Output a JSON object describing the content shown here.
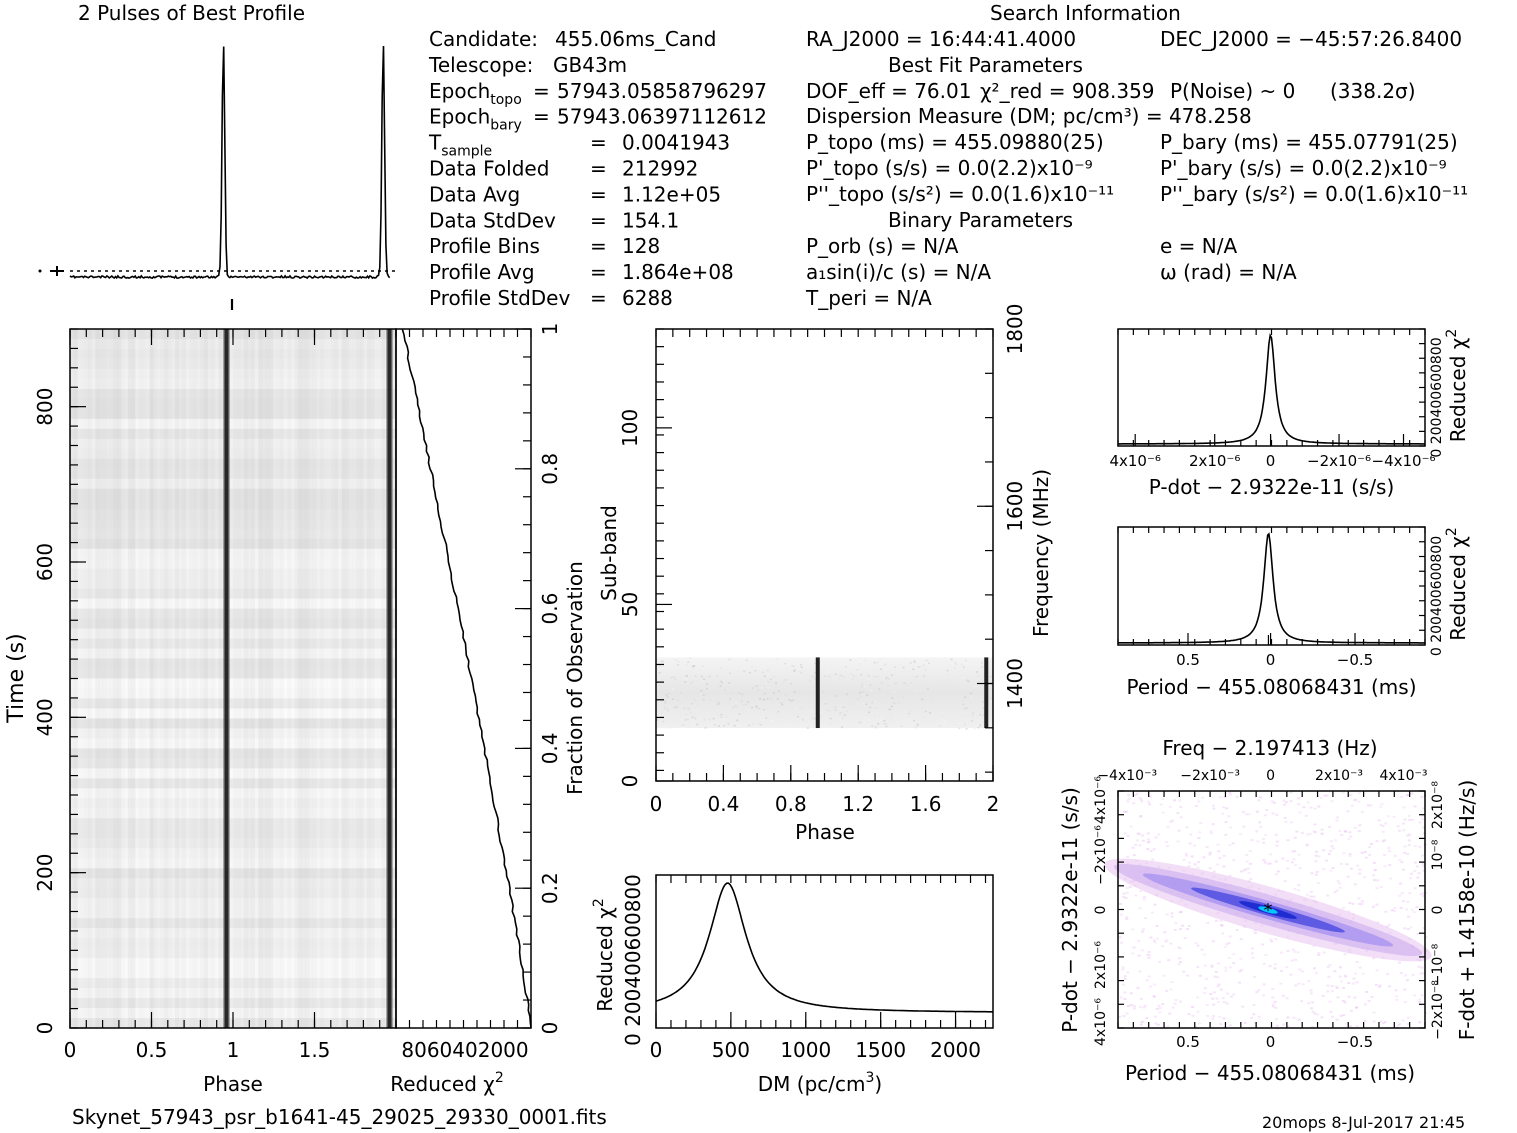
{
  "colors": {
    "background": "#ffffff",
    "ink": "#000000",
    "map_low": "#ffffff",
    "map_mid": "#e8c8f0",
    "map_high": "#2a2ad0",
    "map_peak": "#00c8ff"
  },
  "header": {
    "profile_title": "2 Pulses of Best Profile",
    "search_title": "Search Information",
    "best_fit_title": "Best Fit Parameters",
    "binary_title": "Binary Parameters"
  },
  "info_col1": [
    {
      "name": "Candidate:",
      "sub": "",
      "value": "455.06ms_Cand",
      "eq": ""
    },
    {
      "name": "Telescope:",
      "sub": "",
      "value": "GB43m",
      "eq": ""
    },
    {
      "name": "Epoch",
      "sub": "topo",
      "value": "57943.05858796297",
      "eq": "="
    },
    {
      "name": "Epoch",
      "sub": "bary",
      "value": "57943.06397112612",
      "eq": "="
    },
    {
      "name": "T",
      "sub": "sample",
      "value": "0.0041943",
      "eq": "="
    },
    {
      "name": "Data Folded",
      "sub": "",
      "value": "212992",
      "eq": "="
    },
    {
      "name": "Data Avg",
      "sub": "",
      "value": "1.12e+05",
      "eq": "="
    },
    {
      "name": "Data StdDev",
      "sub": "",
      "value": "154.1",
      "eq": "="
    },
    {
      "name": "Profile Bins",
      "sub": "",
      "value": "128",
      "eq": "="
    },
    {
      "name": "Profile Avg",
      "sub": "",
      "value": "1.864e+08",
      "eq": "="
    },
    {
      "name": "Profile StdDev",
      "sub": "",
      "value": "6288",
      "eq": "="
    }
  ],
  "info_col2": {
    "ra": "RA_J2000 = 16:44:41.4000",
    "dec": "DEC_J2000 = −45:57:26.8400",
    "dof": "DOF_eff = 76.01",
    "chi2": "χ²_red = 908.359",
    "pnoise": "P(Noise) ~ 0",
    "sigma": "(338.2σ)",
    "dm": "Dispersion Measure (DM; pc/cm³) = 478.258",
    "ptopo": "P_topo (ms) = 455.09880(25)",
    "pbary": "P_bary (ms) = 455.07791(25)",
    "pdtopo": "P'_topo (s/s) = 0.0(2.2)x10⁻⁹",
    "pdbary": "P'_bary (s/s) = 0.0(2.2)x10⁻⁹",
    "pddtopo": "P''_topo (s/s²) = 0.0(1.6)x10⁻¹¹",
    "pddbary": "P''_bary (s/s²) = 0.0(1.6)x10⁻¹¹",
    "porb": "P_orb (s) = N/A",
    "e": "e = N/A",
    "a1": "a₁sin(i)/c (s) = N/A",
    "omega": "ω (rad) = N/A",
    "tperi": "T_peri = N/A"
  },
  "footer": {
    "filename": "Skynet_57943_psr_b1641-45_29025_29330_0001.fits",
    "stamp": "20mops   8-Jul-2017 21:45"
  },
  "chart_data": [
    {
      "type": "line",
      "title": "2 Pulses of Best Profile",
      "xlabel": "",
      "ylabel": "",
      "x_range": [
        0,
        2
      ],
      "pulse_phases": [
        0.96,
        1.96
      ],
      "baseline_dotted": true
    },
    {
      "type": "heatmap",
      "xlabel": "Phase",
      "ylabel": "Time (s)",
      "x_ticks": [
        "0",
        "0.5",
        "1",
        "1.5"
      ],
      "y_ticks": [
        "0",
        "200",
        "400",
        "600",
        "800"
      ],
      "xlim": [
        0,
        2
      ],
      "ylim": [
        0,
        900
      ],
      "pulse_phases": [
        0.96,
        1.96
      ]
    },
    {
      "type": "line",
      "xlabel": "Reduced χ²",
      "ylabel": "Fraction of Observation",
      "x_tick_labels": "8060402000",
      "y_ticks": [
        "0",
        "0.2",
        "0.4",
        "0.6",
        "0.8",
        "1"
      ],
      "ylim": [
        0,
        1
      ],
      "note": "cumulative reduced chi2 vs fraction"
    },
    {
      "type": "heatmap",
      "xlabel": "Phase",
      "ylabel": "Sub-band",
      "y2label": "Frequency (MHz)",
      "x_ticks": [
        "0",
        "0.4",
        "0.8",
        "1.2",
        "1.6",
        "2"
      ],
      "y_ticks": [
        "0",
        "50",
        "100"
      ],
      "y2_ticks": [
        "1400",
        "1600",
        "1800"
      ],
      "xlim": [
        0,
        2
      ],
      "ylim": [
        0,
        128
      ],
      "occupied_subbands": [
        15,
        35
      ],
      "pulse_phases": [
        0.96,
        1.96
      ]
    },
    {
      "type": "line",
      "xlabel": "DM (pc/cm³)",
      "ylabel": "Reduced χ²",
      "x_ticks": [
        "0",
        "500",
        "1000",
        "1500",
        "2000"
      ],
      "y_tick_text": "0 200400600800",
      "xlim": [
        0,
        2250
      ],
      "peak_dm": 478.258,
      "peak_value": 908
    },
    {
      "type": "line",
      "xlabel": "P-dot − 2.9322e-11 (s/s)",
      "ylabel": "Reduced χ²",
      "x_ticks": [
        "4x10⁻⁶",
        "2x10⁻⁶",
        "0",
        "−2x10⁻⁶",
        "−4x10⁻⁶"
      ],
      "y_tick_text": "0 200400600800",
      "peak_x": 0
    },
    {
      "type": "line",
      "xlabel": "Period − 455.08068431 (ms)",
      "ylabel": "Reduced χ²",
      "x_ticks": [
        "0.5",
        "0",
        "−0.5"
      ],
      "y_tick_text": "0 200400600800",
      "peak_x": -0.02
    },
    {
      "type": "heatmap",
      "title": "Freq − 2.197413 (Hz)",
      "xlabel": "Period − 455.08068431 (ms)",
      "ylabel": "P-dot − 2.9322e-11 (s/s)",
      "y2label": "F-dot + 1.4158e-10 (Hz/s)",
      "x_ticks": [
        "0.5",
        "0",
        "−0.5"
      ],
      "x2_ticks": [
        "−4x10⁻³",
        "−2x10⁻³",
        "0",
        "2x10⁻³",
        "4x10⁻³"
      ],
      "y_ticks": [
        "4x10⁻⁶",
        "−2x10⁻⁶",
        "0",
        "2x10⁻⁶",
        "4x10⁻⁶"
      ],
      "y2_ticks": [
        "−2x10⁻⁸",
        "−10⁻⁸",
        "0",
        "10⁻⁸",
        "2x10⁻⁸"
      ]
    }
  ]
}
